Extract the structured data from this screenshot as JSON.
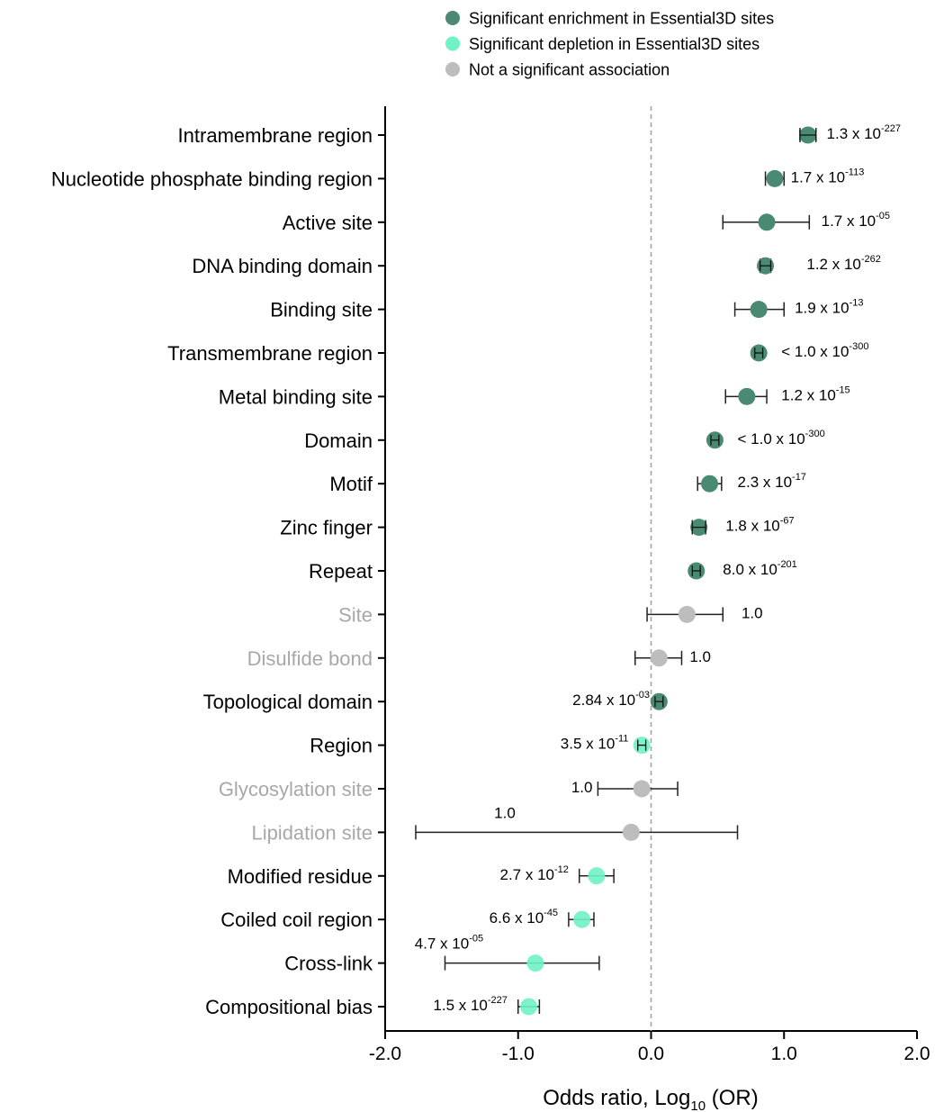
{
  "chart_data": {
    "type": "forest",
    "xlabel": "Odds ratio, Log",
    "xlabel_sub": "10",
    "xlabel_tail": " (OR)",
    "xlim": [
      -2.0,
      2.0
    ],
    "xticks": [
      "-2.0",
      "-1.0",
      "0.0",
      "1.0",
      "2.0"
    ],
    "colors": {
      "enrichment": "#4a8a72",
      "depletion": "#6ff2c6",
      "not_significant": "#bdbdbd",
      "label_normal": "#000000",
      "label_muted": "#a8a8a8"
    },
    "legend": [
      {
        "key": "enrichment",
        "label": "Significant enrichment in Essential3D sites"
      },
      {
        "key": "depletion",
        "label": "Significant depletion in Essential3D sites"
      },
      {
        "key": "not_significant",
        "label": "Not a significant association"
      }
    ],
    "rows": [
      {
        "label": "Intramembrane region",
        "value": 1.18,
        "lo": 1.12,
        "hi": 1.24,
        "status": "enrichment",
        "p_base": "1.3 x 10",
        "p_exp": "-227"
      },
      {
        "label": "Nucleotide phosphate binding region",
        "value": 0.93,
        "lo": 0.86,
        "hi": 1.0,
        "status": "enrichment",
        "p_base": "1.7 x 10",
        "p_exp": "-113"
      },
      {
        "label": "Active site",
        "value": 0.87,
        "lo": 0.54,
        "hi": 1.19,
        "status": "enrichment",
        "p_base": "1.7 x 10",
        "p_exp": "-05"
      },
      {
        "label": "DNA binding domain",
        "value": 0.86,
        "lo": 0.82,
        "hi": 0.9,
        "status": "enrichment",
        "p_base": "1.2 x 10",
        "p_exp": "-262"
      },
      {
        "label": "Binding site",
        "value": 0.81,
        "lo": 0.63,
        "hi": 1.0,
        "status": "enrichment",
        "p_base": "1.9 x 10",
        "p_exp": "-13"
      },
      {
        "label": "Transmembrane region",
        "value": 0.81,
        "lo": 0.78,
        "hi": 0.84,
        "status": "enrichment",
        "p_base": "< 1.0 x 10",
        "p_exp": "-300"
      },
      {
        "label": "Metal binding site",
        "value": 0.72,
        "lo": 0.56,
        "hi": 0.87,
        "status": "enrichment",
        "p_base": "1.2 x 10",
        "p_exp": "-15"
      },
      {
        "label": "Domain",
        "value": 0.48,
        "lo": 0.45,
        "hi": 0.51,
        "status": "enrichment",
        "p_base": "< 1.0 x 10",
        "p_exp": "-300"
      },
      {
        "label": "Motif",
        "value": 0.44,
        "lo": 0.35,
        "hi": 0.53,
        "status": "enrichment",
        "p_base": "2.3 x 10",
        "p_exp": "-17"
      },
      {
        "label": "Zinc finger",
        "value": 0.36,
        "lo": 0.31,
        "hi": 0.41,
        "status": "enrichment",
        "p_base": "1.8 x 10",
        "p_exp": "-67"
      },
      {
        "label": "Repeat",
        "value": 0.34,
        "lo": 0.31,
        "hi": 0.37,
        "status": "enrichment",
        "p_base": "8.0 x 10",
        "p_exp": "-201"
      },
      {
        "label": "Site",
        "value": 0.27,
        "lo": -0.03,
        "hi": 0.54,
        "status": "not_significant",
        "p_base": "1.0",
        "p_exp": ""
      },
      {
        "label": "Disulfide bond",
        "value": 0.06,
        "lo": -0.12,
        "hi": 0.23,
        "status": "not_significant",
        "p_base": "1.0",
        "p_exp": ""
      },
      {
        "label": "Topological domain",
        "value": 0.06,
        "lo": 0.03,
        "hi": 0.09,
        "status": "enrichment",
        "p_base": "2.84 x 10",
        "p_exp": "-03"
      },
      {
        "label": "Region",
        "value": -0.07,
        "lo": -0.1,
        "hi": -0.04,
        "status": "depletion",
        "p_base": "3.5 x 10",
        "p_exp": "-11"
      },
      {
        "label": "Glycosylation site",
        "value": -0.07,
        "lo": -0.4,
        "hi": 0.2,
        "status": "not_significant",
        "p_base": "1.0",
        "p_exp": ""
      },
      {
        "label": "Lipidation site",
        "value": -0.15,
        "lo": -1.77,
        "hi": 0.65,
        "status": "not_significant",
        "p_base": "1.0",
        "p_exp": ""
      },
      {
        "label": "Modified residue",
        "value": -0.41,
        "lo": -0.54,
        "hi": -0.28,
        "status": "depletion",
        "p_base": "2.7 x 10",
        "p_exp": "-12"
      },
      {
        "label": "Coiled coil region",
        "value": -0.52,
        "lo": -0.62,
        "hi": -0.43,
        "status": "depletion",
        "p_base": "6.6 x 10",
        "p_exp": "-45"
      },
      {
        "label": "Cross-link",
        "value": -0.87,
        "lo": -1.55,
        "hi": -0.39,
        "status": "depletion",
        "p_base": "4.7 x 10",
        "p_exp": "-05"
      },
      {
        "label": "Compositional bias",
        "value": -0.92,
        "lo": -1.0,
        "hi": -0.84,
        "status": "depletion",
        "p_base": "1.5 x 10",
        "p_exp": "-227"
      }
    ]
  }
}
